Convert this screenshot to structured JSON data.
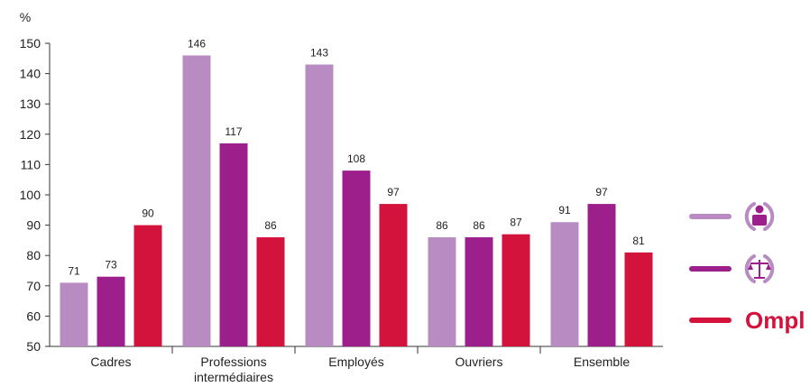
{
  "chart_data": {
    "type": "bar",
    "ylabel": "%",
    "ylim": [
      50,
      150
    ],
    "yticks": [
      50,
      60,
      70,
      80,
      90,
      100,
      110,
      120,
      130,
      140,
      150
    ],
    "grid": false,
    "legend_position": "right",
    "categories": [
      [
        "Cadres"
      ],
      [
        "Professions",
        "intermédiaires"
      ],
      [
        "Employés"
      ],
      [
        "Ouvriers"
      ],
      [
        "Ensemble"
      ]
    ],
    "series": [
      {
        "icon": "person-circle-icon",
        "color": "#b88cc2",
        "values": [
          71,
          146,
          143,
          86,
          91
        ]
      },
      {
        "icon": "scales-circle-icon",
        "color": "#9c1f8c",
        "values": [
          73,
          117,
          108,
          86,
          97
        ]
      },
      {
        "icon": "ompl-logo",
        "logo_text": "Ompl",
        "color": "#d4133c",
        "values": [
          90,
          86,
          97,
          87,
          81
        ]
      }
    ]
  }
}
